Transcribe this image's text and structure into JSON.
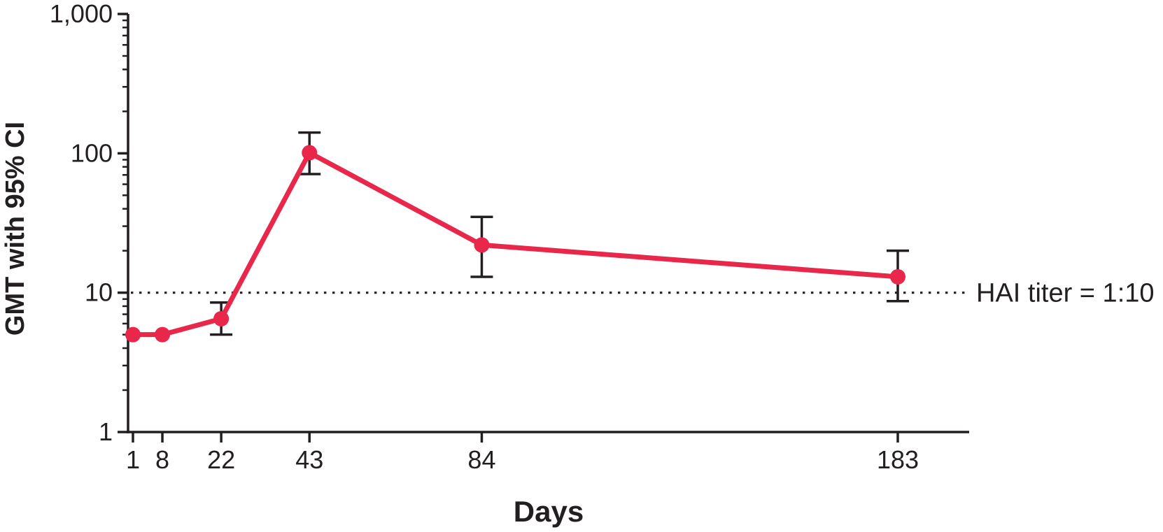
{
  "figure": {
    "background": "#ffffff",
    "text_color": "#231F20",
    "axis_color": "#231F20"
  },
  "chart_data": {
    "type": "line",
    "title": "",
    "xlabel": "Days",
    "ylabel": "GMT with 95% CI",
    "y_scale": "log10",
    "y_range": [
      1,
      1000
    ],
    "y_ticks": [
      1,
      10,
      100,
      1000
    ],
    "y_tick_labels": [
      "1",
      "10",
      "100",
      "1,000"
    ],
    "x_range": [
      1,
      200
    ],
    "x_ticks": [
      1,
      8,
      22,
      43,
      84,
      183
    ],
    "x_tick_labels": [
      "1",
      "8",
      "22",
      "43",
      "84",
      "183"
    ],
    "grid": false,
    "legend": false,
    "series": [
      {
        "name": "GMT with 95% CI",
        "color": "#E8274B",
        "marker": "circle",
        "x": [
          1,
          8,
          22,
          43,
          84,
          183
        ],
        "values": [
          5,
          5,
          6.5,
          101,
          22,
          13
        ],
        "ci_lower": [
          null,
          null,
          5.0,
          71,
          13,
          8.7
        ],
        "ci_upper": [
          null,
          null,
          8.5,
          141,
          35,
          20
        ]
      }
    ],
    "annotations": [
      {
        "type": "hline",
        "y": 10,
        "style": "dotted",
        "color": "#231F20",
        "label": "HAI titer = 1:10"
      }
    ]
  }
}
